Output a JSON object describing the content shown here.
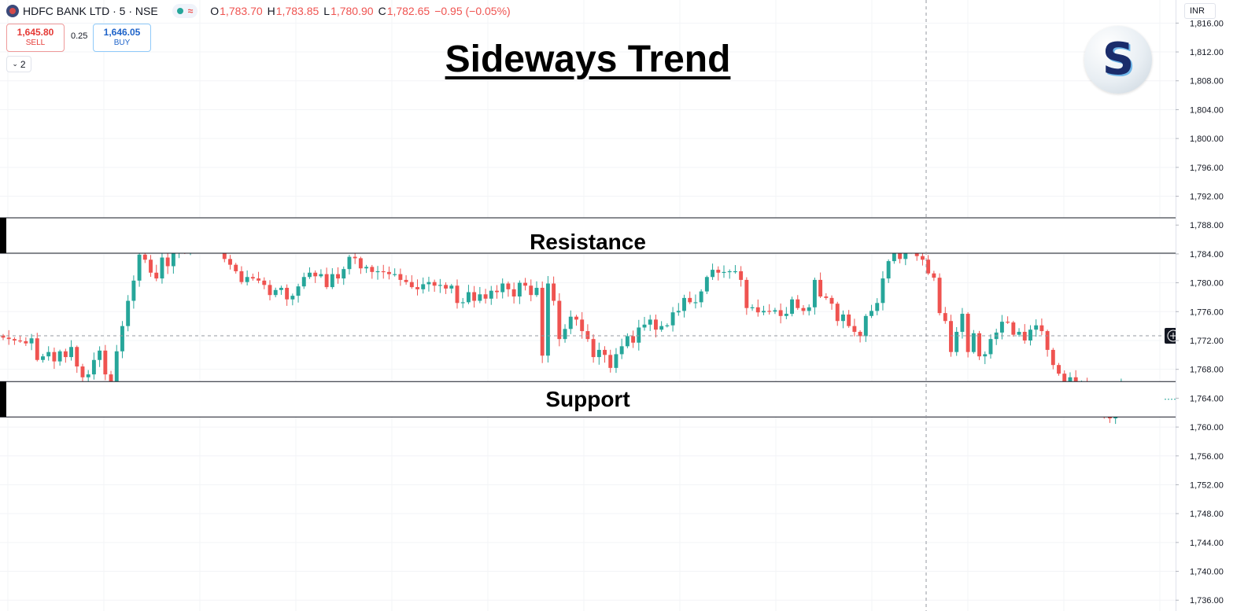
{
  "header": {
    "symbol": "HDFC BANK LTD · 5 · NSE",
    "open_label": "O",
    "open": "1,783.70",
    "high_label": "H",
    "high": "1,783.85",
    "low_label": "L",
    "low": "1,780.90",
    "close_label": "C",
    "close": "1,782.65",
    "change": "−0.95 (−0.05%)"
  },
  "trade": {
    "sell_price": "1,645.80",
    "sell_label": "SELL",
    "spread": "0.25",
    "buy_price": "1,646.05",
    "buy_label": "BUY"
  },
  "indicators_count": "2",
  "currency": "INR",
  "logo_letter": "S",
  "colors": {
    "up": "#26a69a",
    "down": "#ef5350",
    "zone_border": "#131722",
    "grid": "#f3f4f7"
  },
  "chart_data": {
    "type": "candlestick",
    "title": "Sideways Trend",
    "ylim": [
      1734.5,
      1819.2
    ],
    "y_ticks": [
      "1,816.00",
      "1,812.00",
      "1,808.00",
      "1,804.00",
      "1,800.00",
      "1,796.00",
      "1,792.00",
      "1,788.00",
      "1,784.00",
      "1,780.00",
      "1,776.00",
      "1,772.00",
      "1,768.00",
      "1,764.00",
      "1,760.00",
      "1,756.00",
      "1,752.00",
      "1,748.00",
      "1,744.00",
      "1,740.00",
      "1,736.00"
    ],
    "current_price": "1,772.65",
    "last_price": "1,763.85",
    "zones": [
      {
        "label": "Resistance",
        "from": 1784.1,
        "to": 1789.0
      },
      {
        "label": "Support",
        "from": 1761.4,
        "to": 1766.3
      }
    ],
    "closes": [
      1772.4,
      1772.2,
      1772.0,
      1771.9,
      1771.6,
      1772.3,
      1769.3,
      1769.8,
      1770.4,
      1769.1,
      1770.5,
      1769.7,
      1771.1,
      1768.4,
      1766.9,
      1767.3,
      1769.3,
      1770.6,
      1767.3,
      1764.3,
      1770.5,
      1774.0,
      1777.5,
      1780.3,
      1783.9,
      1783.2,
      1781.4,
      1780.6,
      1783.5,
      1782.3,
      1784.1,
      1785.0,
      1784.4,
      1786.5,
      1786.1,
      1787.0,
      1785.9,
      1786.6,
      1785.3,
      1783.3,
      1782.5,
      1781.6,
      1780.1,
      1780.8,
      1780.6,
      1780.3,
      1779.7,
      1778.3,
      1779.0,
      1779.3,
      1777.7,
      1778.2,
      1779.5,
      1780.8,
      1781.4,
      1780.9,
      1781.2,
      1779.4,
      1781.2,
      1780.6,
      1781.9,
      1783.6,
      1783.4,
      1782.0,
      1782.2,
      1781.5,
      1781.6,
      1781.5,
      1781.2,
      1781.2,
      1780.4,
      1780.1,
      1779.4,
      1779.1,
      1779.8,
      1780.1,
      1779.6,
      1779.7,
      1779.2,
      1779.6,
      1777.2,
      1777.3,
      1778.7,
      1777.5,
      1778.4,
      1777.8,
      1778.9,
      1778.7,
      1779.9,
      1779.1,
      1778.1,
      1780.0,
      1779.6,
      1778.3,
      1779.3,
      1769.9,
      1779.9,
      1777.5,
      1772.2,
      1773.6,
      1775.3,
      1774.9,
      1773.3,
      1772.2,
      1769.7,
      1770.7,
      1770.0,
      1768.2,
      1770.1,
      1771.2,
      1772.6,
      1771.7,
      1773.8,
      1774.2,
      1774.9,
      1773.5,
      1774.0,
      1774.1,
      1775.9,
      1776.1,
      1777.9,
      1777.3,
      1777.3,
      1778.8,
      1780.8,
      1781.8,
      1781.4,
      1781.5,
      1781.6,
      1781.6,
      1780.4,
      1776.5,
      1776.6,
      1775.9,
      1776.1,
      1776.0,
      1776.2,
      1775.4,
      1775.7,
      1777.7,
      1776.5,
      1776.1,
      1776.6,
      1780.4,
      1778.1,
      1777.9,
      1777.1,
      1774.7,
      1775.6,
      1774.0,
      1773.2,
      1772.6,
      1775.4,
      1776.1,
      1777.2,
      1780.6,
      1783.0,
      1784.4,
      1783.3,
      1784.9,
      1787.1,
      1783.7,
      1783.2,
      1781.3,
      1780.7,
      1775.8,
      1774.7,
      1770.4,
      1773.2,
      1775.7,
      1770.4,
      1773.0,
      1769.8,
      1770.1,
      1772.2,
      1773.1,
      1774.6,
      1774.5,
      1772.8,
      1773.2,
      1772.0,
      1773.5,
      1774.1,
      1773.3,
      1770.7,
      1768.6,
      1767.4,
      1764.6,
      1766.9,
      1765.0,
      1765.9,
      1764.2,
      1764.5,
      1763.6,
      1762.1,
      1761.2,
      1763.1,
      1765.8,
      1764.8,
      1765.3,
      1765.0,
      1764.6,
      1764.5,
      1763.0,
      1763.1,
      1763.5,
      1764.0,
      1764.3
    ]
  }
}
